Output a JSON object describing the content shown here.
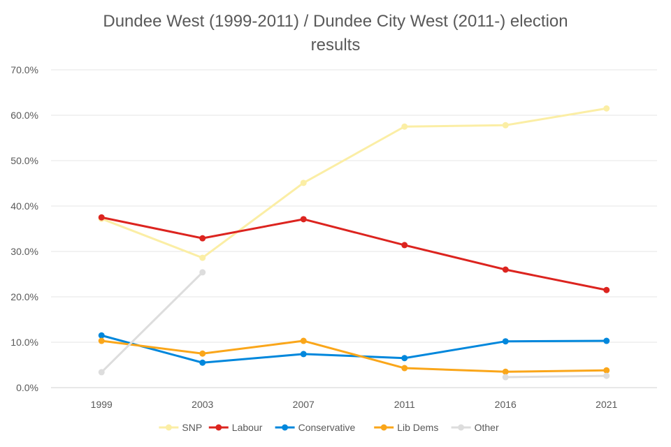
{
  "chart_data": {
    "type": "line",
    "title": "Dundee West (1999-2011) / Dundee City West (2011-) election results",
    "title_lines": [
      "Dundee West (1999-2011) / Dundee City West (2011-) election",
      "results"
    ],
    "xlabel": "",
    "ylabel": "",
    "categories": [
      "1999",
      "2003",
      "2007",
      "2011",
      "2016",
      "2021"
    ],
    "ylim": [
      0,
      70
    ],
    "yticks": [
      0,
      10,
      20,
      30,
      40,
      50,
      60,
      70
    ],
    "ytick_labels": [
      "0.0%",
      "10.0%",
      "20.0%",
      "30.0%",
      "40.0%",
      "50.0%",
      "60.0%",
      "70.0%"
    ],
    "grid": true,
    "legend_position": "bottom",
    "series": [
      {
        "name": "SNP",
        "color": "#FBEEA5",
        "values": [
          37.2,
          28.6,
          45.1,
          57.5,
          57.8,
          61.5
        ]
      },
      {
        "name": "Labour",
        "color": "#DC241F",
        "values": [
          37.5,
          32.9,
          37.1,
          31.4,
          26.0,
          21.5
        ]
      },
      {
        "name": "Conservative",
        "color": "#0087DC",
        "values": [
          11.5,
          5.5,
          7.4,
          6.5,
          10.2,
          10.3
        ]
      },
      {
        "name": "Lib Dems",
        "color": "#FAA61A",
        "values": [
          10.3,
          7.5,
          10.3,
          4.3,
          3.5,
          3.8
        ]
      },
      {
        "name": "Other",
        "color": "#DDDDDD",
        "values": [
          3.4,
          25.4,
          null,
          null,
          2.3,
          2.6
        ]
      }
    ]
  }
}
